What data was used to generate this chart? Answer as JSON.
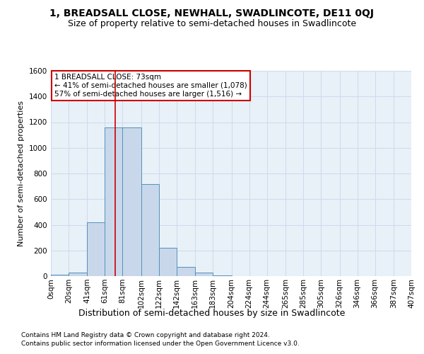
{
  "title": "1, BREADSALL CLOSE, NEWHALL, SWADLINCOTE, DE11 0QJ",
  "subtitle": "Size of property relative to semi-detached houses in Swadlincote",
  "xlabel": "Distribution of semi-detached houses by size in Swadlincote",
  "ylabel": "Number of semi-detached properties",
  "footnote1": "Contains HM Land Registry data © Crown copyright and database right 2024.",
  "footnote2": "Contains public sector information licensed under the Open Government Licence v3.0.",
  "bar_color": "#c8d8ea",
  "bar_edge_color": "#5590bb",
  "property_size": 73,
  "vline_color": "#cc0000",
  "annotation_text": "1 BREADSALL CLOSE: 73sqm\n← 41% of semi-detached houses are smaller (1,078)\n57% of semi-detached houses are larger (1,516) →",
  "annotation_box_color": "#cc0000",
  "annotation_bg": "white",
  "bin_edges": [
    0,
    20,
    41,
    61,
    81,
    102,
    122,
    142,
    163,
    183,
    204,
    224,
    244,
    265,
    285,
    305,
    326,
    346,
    366,
    387,
    407
  ],
  "bin_labels": [
    "0sqm",
    "20sqm",
    "41sqm",
    "61sqm",
    "81sqm",
    "102sqm",
    "122sqm",
    "142sqm",
    "163sqm",
    "183sqm",
    "204sqm",
    "224sqm",
    "244sqm",
    "265sqm",
    "285sqm",
    "305sqm",
    "326sqm",
    "346sqm",
    "366sqm",
    "387sqm",
    "407sqm"
  ],
  "counts": [
    10,
    28,
    420,
    1160,
    1160,
    715,
    220,
    70,
    25,
    5,
    2,
    1,
    0,
    0,
    0,
    0,
    0,
    0,
    0,
    0
  ],
  "ylim": [
    0,
    1600
  ],
  "yticks": [
    0,
    200,
    400,
    600,
    800,
    1000,
    1200,
    1400,
    1600
  ],
  "grid_color": "#c8d8ea",
  "bg_color": "#e8f0f8",
  "title_fontsize": 10,
  "subtitle_fontsize": 9,
  "ylabel_fontsize": 8,
  "xlabel_fontsize": 9,
  "footnote_fontsize": 6.5,
  "tick_fontsize": 7.5,
  "annotation_fontsize": 7.5
}
